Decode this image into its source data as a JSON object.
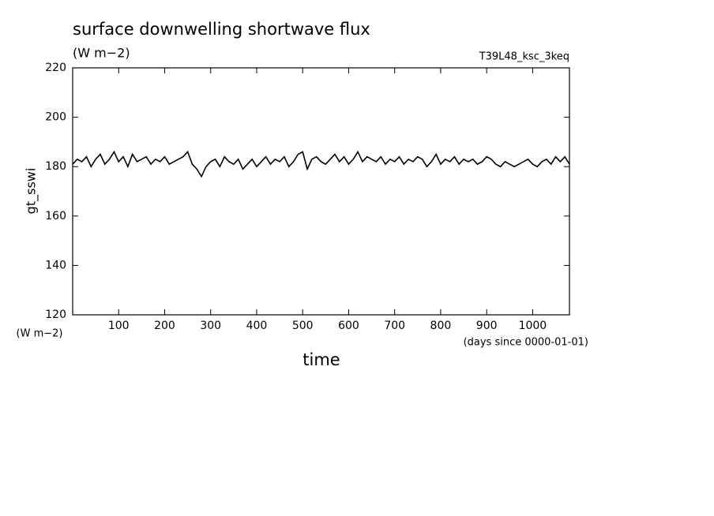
{
  "chart_data": {
    "type": "line",
    "title": "surface downwelling shortwave flux",
    "subtitle": "(W m−2)",
    "annotation": "T39L48_ksc_3keq",
    "y_label": "gt_sswi",
    "y_unit": "(W m−2)",
    "x_unit": "(days since 0000-01-01)",
    "x_label": "time",
    "xlim": [
      0,
      1080
    ],
    "ylim": [
      120,
      220
    ],
    "xticks": [
      100,
      200,
      300,
      400,
      500,
      600,
      700,
      800,
      900,
      1000
    ],
    "yticks": [
      120,
      140,
      160,
      180,
      200,
      220
    ],
    "grid": false,
    "color": "#000000",
    "x": [
      0,
      10,
      20,
      30,
      40,
      50,
      60,
      70,
      80,
      90,
      100,
      110,
      120,
      130,
      140,
      150,
      160,
      170,
      180,
      190,
      200,
      210,
      220,
      230,
      240,
      250,
      260,
      270,
      280,
      290,
      300,
      310,
      320,
      330,
      340,
      350,
      360,
      370,
      380,
      390,
      400,
      410,
      420,
      430,
      440,
      450,
      460,
      470,
      480,
      490,
      500,
      510,
      520,
      530,
      540,
      550,
      560,
      570,
      580,
      590,
      600,
      610,
      620,
      630,
      640,
      650,
      660,
      670,
      680,
      690,
      700,
      710,
      720,
      730,
      740,
      750,
      760,
      770,
      780,
      790,
      800,
      810,
      820,
      830,
      840,
      850,
      860,
      870,
      880,
      890,
      900,
      910,
      920,
      930,
      940,
      950,
      960,
      970,
      980,
      990,
      1000,
      1010,
      1020,
      1030,
      1040,
      1050,
      1060,
      1070,
      1080
    ],
    "values": [
      181,
      183,
      182,
      184,
      180,
      183,
      185,
      181,
      183,
      186,
      182,
      184,
      180,
      185,
      182,
      183,
      184,
      181,
      183,
      182,
      184,
      181,
      182,
      183,
      184,
      186,
      181,
      179,
      176,
      180,
      182,
      183,
      180,
      184,
      182,
      181,
      183,
      179,
      181,
      183,
      180,
      182,
      184,
      181,
      183,
      182,
      184,
      180,
      182,
      185,
      186,
      179,
      183,
      184,
      182,
      181,
      183,
      185,
      182,
      184,
      181,
      183,
      186,
      182,
      184,
      183,
      182,
      184,
      181,
      183,
      182,
      184,
      181,
      183,
      182,
      184,
      183,
      180,
      182,
      185,
      181,
      183,
      182,
      184,
      181,
      183,
      182,
      183,
      181,
      182,
      184,
      183,
      181,
      180,
      182,
      181,
      180,
      181,
      182,
      183,
      181,
      180,
      182,
      183,
      181,
      184,
      182,
      184,
      181
    ]
  }
}
